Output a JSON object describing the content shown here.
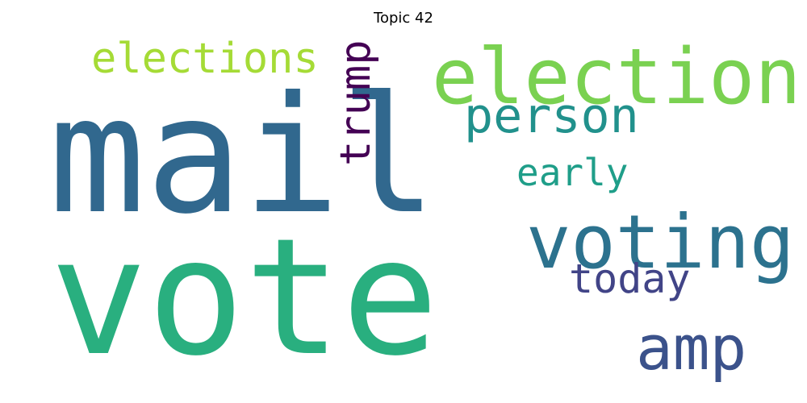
{
  "chart_data": {
    "type": "wordcloud",
    "title": "Topic 42",
    "background": "#ffffff",
    "colormap": "viridis",
    "words": [
      {
        "text": "mail",
        "weight": 1.0,
        "color": "#31688e",
        "orientation": "horizontal"
      },
      {
        "text": "vote",
        "weight": 0.92,
        "color": "#29af7f",
        "orientation": "horizontal"
      },
      {
        "text": "election",
        "weight": 0.55,
        "color": "#7ad151",
        "orientation": "horizontal"
      },
      {
        "text": "voting",
        "weight": 0.5,
        "color": "#2c728e",
        "orientation": "horizontal"
      },
      {
        "text": "amp",
        "weight": 0.45,
        "color": "#3b528b",
        "orientation": "horizontal"
      },
      {
        "text": "person",
        "weight": 0.38,
        "color": "#21918c",
        "orientation": "horizontal"
      },
      {
        "text": "elections",
        "weight": 0.33,
        "color": "#a5db36",
        "orientation": "horizontal"
      },
      {
        "text": "trump",
        "weight": 0.3,
        "color": "#440154",
        "orientation": "vertical"
      },
      {
        "text": "today",
        "weight": 0.3,
        "color": "#414487",
        "orientation": "horizontal"
      },
      {
        "text": "early",
        "weight": 0.29,
        "color": "#1f9e89",
        "orientation": "horizontal"
      }
    ]
  }
}
